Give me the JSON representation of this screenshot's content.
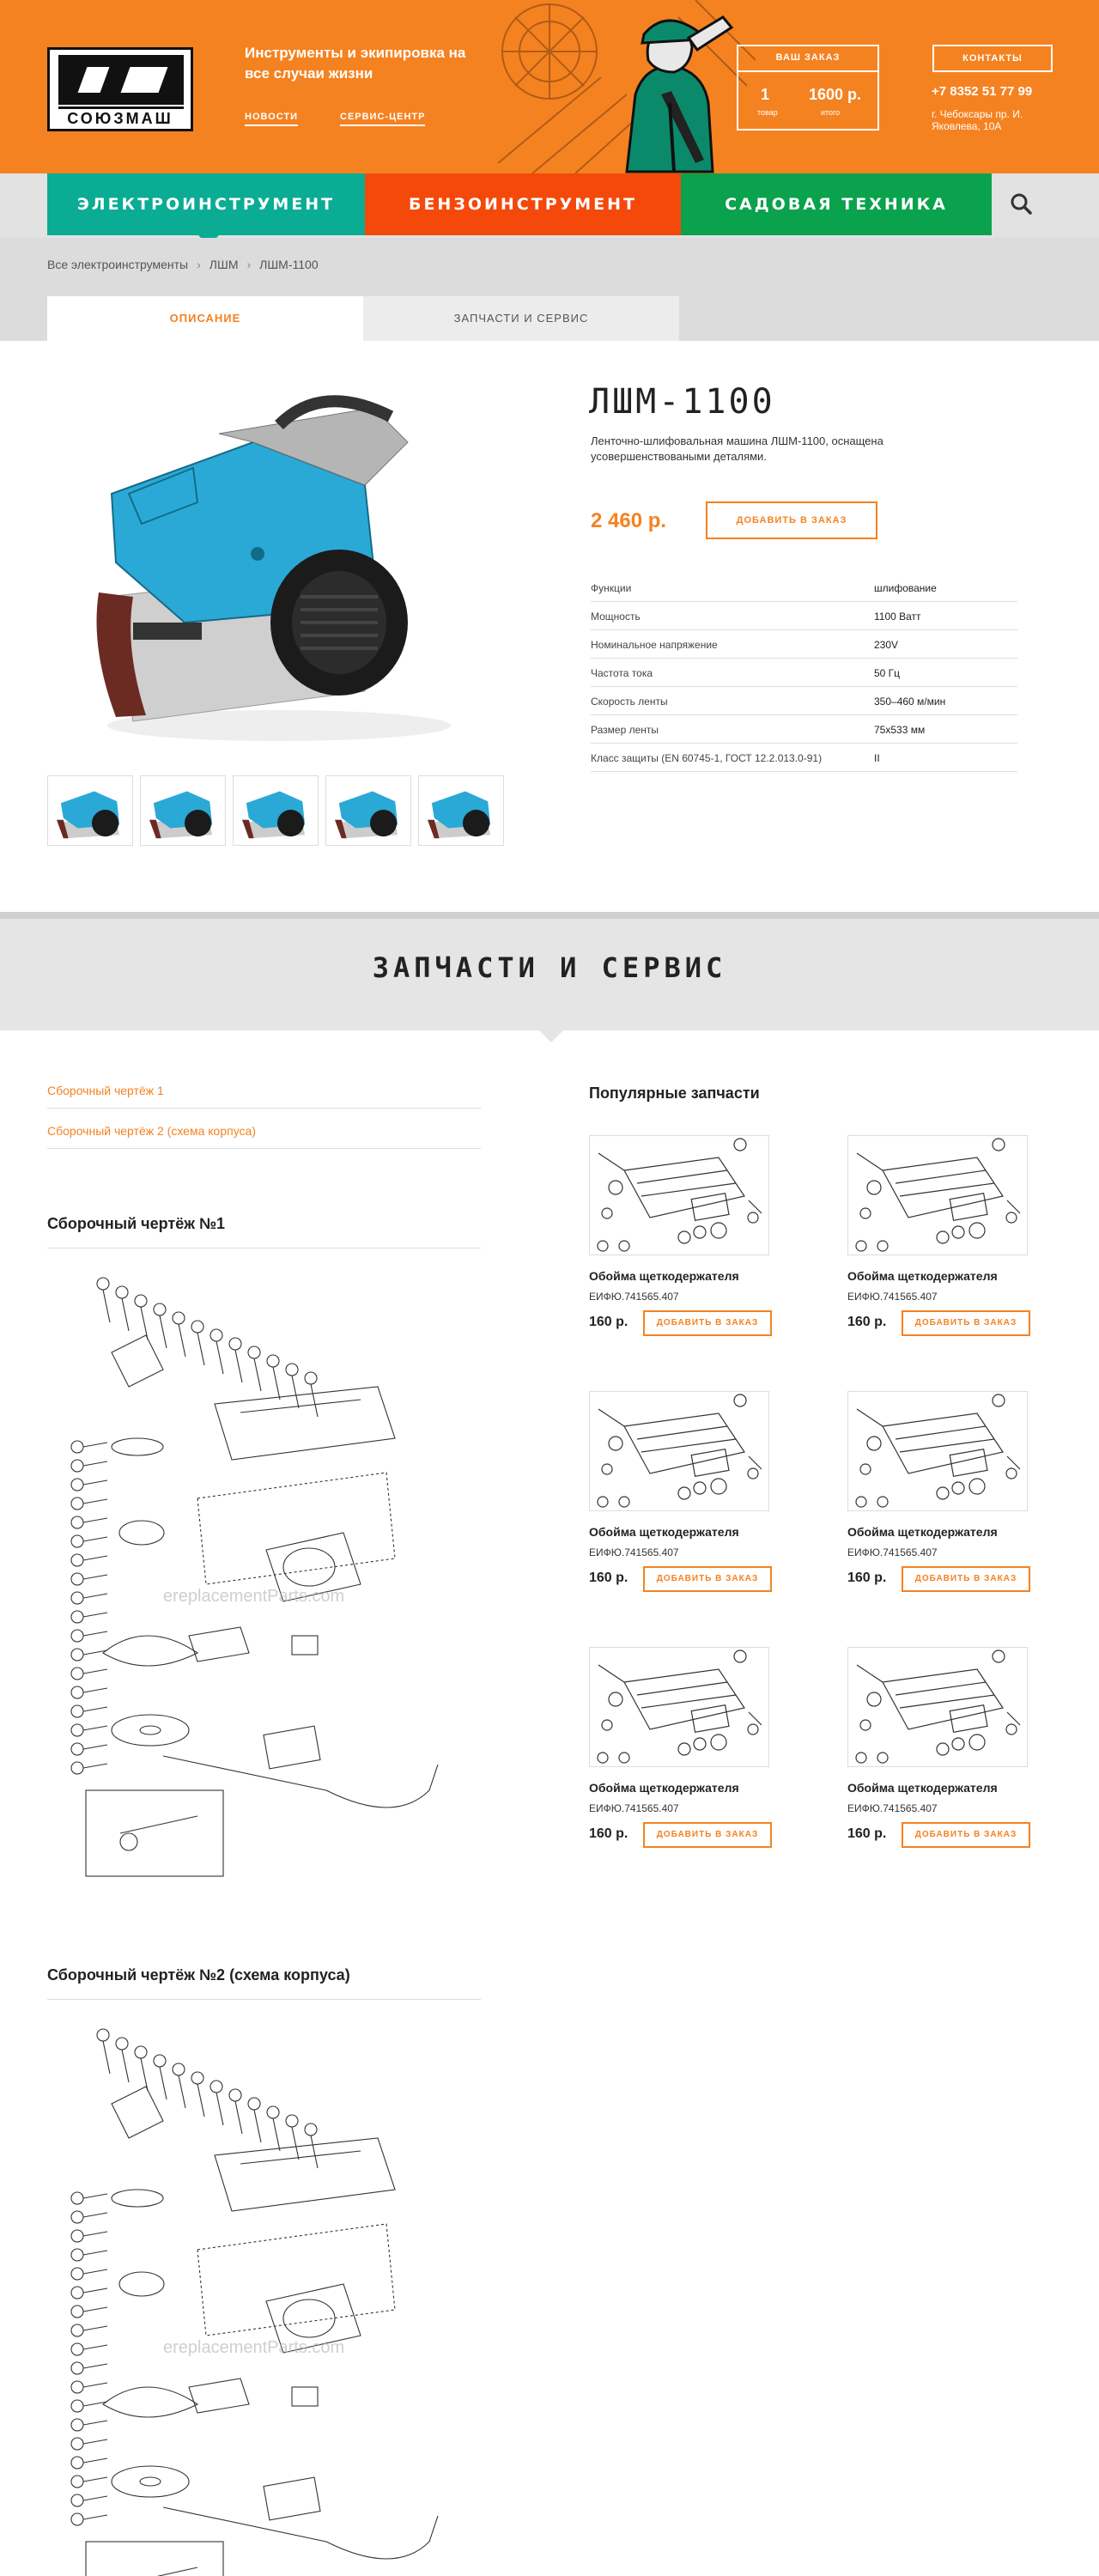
{
  "header": {
    "logo_text": "СОЮЗМАШ",
    "tagline": "Инструменты и экипировка на все случаи жизни",
    "links": [
      "Новости",
      "Сервис-центр"
    ],
    "order": {
      "title": "Ваш заказ",
      "count": "1",
      "count_label": "товар",
      "total": "1600 р.",
      "total_label": "итого"
    },
    "contacts_label": "Контакты",
    "phone": "+7 8352 51 77 99",
    "address": "г. Чебоксары пр. И. Яковлева, 10А"
  },
  "nav": {
    "items": [
      "Электроинструмент",
      "Бензоинструмент",
      "Садовая техника"
    ],
    "active": 0,
    "colors": [
      "#0aac94",
      "#f4490b",
      "#0aa24d"
    ],
    "search_icon": "search-icon"
  },
  "breadcrumbs": [
    "Все электроинструменты",
    "ЛШМ",
    "ЛШМ-1100"
  ],
  "tabs": [
    "Описание",
    "Запчасти и сервис"
  ],
  "product": {
    "title": "ЛШМ-1100",
    "description": "Ленточно-шлифовальная машина ЛШМ-1100, оснащена усовершенствоваными деталями.",
    "price": "2 460 р.",
    "add_label": "Добавить в заказ",
    "specs": [
      {
        "k": "Функции",
        "v": "шлифование"
      },
      {
        "k": "Мощность",
        "v": "1100 Ватт"
      },
      {
        "k": "Номинальное напряжение",
        "v": "230V"
      },
      {
        "k": "Частота тока",
        "v": "50 Гц"
      },
      {
        "k": "Скорость ленты",
        "v": "350–460 м/мин"
      },
      {
        "k": "Размер ленты",
        "v": "75х533 мм"
      },
      {
        "k": "Класс защиты (EN 60745-1, ГОСТ 12.2.013.0-91)",
        "v": "II"
      }
    ],
    "thumb_count": 5
  },
  "parts_section": {
    "title": "Запчасти и сервис",
    "drawing_links": [
      "Сборочный чертёж 1",
      "Сборочный чертёж 2 (схема корпуса)"
    ],
    "drawings": [
      {
        "title": "Сборочный чертёж №1",
        "watermark": "ereplacementParts.com"
      },
      {
        "title": "Сборочный чертёж №2 (схема корпуса)",
        "watermark": "ereplacementParts.com"
      }
    ],
    "popular_title": "Популярные запчасти",
    "parts": [
      {
        "name": "Обойма щеткодержателя",
        "code": "ЕИФЮ.741565.407",
        "price": "160 р.",
        "btn": "Добавить в заказ"
      },
      {
        "name": "Обойма щеткодержателя",
        "code": "ЕИФЮ.741565.407",
        "price": "160 р.",
        "btn": "Добавить в заказ"
      },
      {
        "name": "Обойма щеткодержателя",
        "code": "ЕИФЮ.741565.407",
        "price": "160 р.",
        "btn": "Добавить в заказ"
      },
      {
        "name": "Обойма щеткодержателя",
        "code": "ЕИФЮ.741565.407",
        "price": "160 р.",
        "btn": "Добавить в заказ"
      },
      {
        "name": "Обойма щеткодержателя",
        "code": "ЕИФЮ.741565.407",
        "price": "160 р.",
        "btn": "Добавить в заказ"
      },
      {
        "name": "Обойма щеткодержателя",
        "code": "ЕИФЮ.741565.407",
        "price": "160 р.",
        "btn": "Добавить в заказ"
      }
    ]
  },
  "colors": {
    "accent": "#f58220",
    "teal": "#0aac94",
    "red": "#f4490b",
    "green": "#0aa24d"
  }
}
